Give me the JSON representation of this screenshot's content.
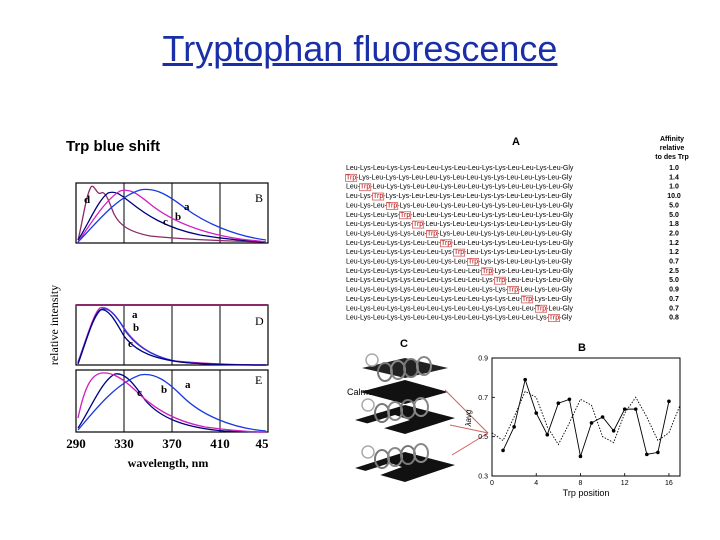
{
  "slide": {
    "title": "Tryptophan fluorescence",
    "subtitle": "Trp blue shift"
  },
  "left_figure": {
    "ylabel": "relative intensity",
    "xlabel": "wavelength, nm",
    "xticks": [
      "290",
      "330",
      "370",
      "410",
      "45"
    ],
    "panels": [
      {
        "label": "B",
        "curve_labels": [
          "d",
          "a",
          "b",
          "c"
        ]
      },
      {
        "label": "D",
        "curve_labels": [
          "a",
          "b",
          "c"
        ]
      },
      {
        "label": "E",
        "curve_labels": [
          "c",
          "b",
          "a"
        ]
      }
    ]
  },
  "table_A": {
    "panel_label": "A",
    "header_lines": [
      "Affinity",
      "relative",
      "to des Trp"
    ],
    "rows": [
      {
        "sequence": "Leu-Lys-Leu-Lys-Lys-Leu-Leu-Lys-Leu-Leu-Lys-Lys-Leu-Leu-Lys-Leu-Gly",
        "trp_pos": null,
        "affinity": "1.0"
      },
      {
        "sequence": "Trp-Lys-Leu-Lys-Lys-Leu-Leu-Lys-Leu-Leu-Lys-Lys-Leu-Leu-Lys-Leu-Gly",
        "trp_pos": 0,
        "affinity": "1.4"
      },
      {
        "sequence": "Leu-Trp-Leu-Lys-Lys-Leu-Leu-Lys-Leu-Leu-Lys-Lys-Leu-Leu-Lys-Leu-Gly",
        "trp_pos": 1,
        "affinity": "1.0"
      },
      {
        "sequence": "Leu-Lys-Trp-Lys-Lys-Leu-Leu-Lys-Leu-Leu-Lys-Lys-Leu-Leu-Lys-Leu-Gly",
        "trp_pos": 2,
        "affinity": "10.0"
      },
      {
        "sequence": "Leu-Lys-Leu-Trp-Lys-Leu-Leu-Lys-Leu-Leu-Lys-Lys-Leu-Leu-Lys-Leu-Gly",
        "trp_pos": 3,
        "affinity": "5.0"
      },
      {
        "sequence": "Leu-Lys-Leu-Lys-Trp-Leu-Leu-Lys-Leu-Leu-Lys-Lys-Leu-Leu-Lys-Leu-Gly",
        "trp_pos": 4,
        "affinity": "5.0"
      },
      {
        "sequence": "Leu-Lys-Leu-Lys-Lys-Trp-Leu-Lys-Leu-Leu-Lys-Lys-Leu-Leu-Lys-Leu-Gly",
        "trp_pos": 5,
        "affinity": "1.8"
      },
      {
        "sequence": "Leu-Lys-Leu-Lys-Lys-Leu-Trp-Lys-Leu-Leu-Lys-Lys-Leu-Leu-Lys-Leu-Gly",
        "trp_pos": 6,
        "affinity": "2.0"
      },
      {
        "sequence": "Leu-Lys-Leu-Lys-Lys-Leu-Leu-Trp-Leu-Leu-Lys-Lys-Leu-Leu-Lys-Leu-Gly",
        "trp_pos": 7,
        "affinity": "1.2"
      },
      {
        "sequence": "Leu-Lys-Leu-Lys-Lys-Leu-Leu-Lys-Trp-Leu-Lys-Lys-Leu-Leu-Lys-Leu-Gly",
        "trp_pos": 8,
        "affinity": "1.2"
      },
      {
        "sequence": "Leu-Lys-Leu-Lys-Lys-Leu-Leu-Lys-Leu-Trp-Lys-Lys-Leu-Leu-Lys-Leu-Gly",
        "trp_pos": 9,
        "affinity": "0.7"
      },
      {
        "sequence": "Leu-Lys-Leu-Lys-Lys-Leu-Leu-Lys-Leu-Leu-Trp-Lys-Leu-Leu-Lys-Leu-Gly",
        "trp_pos": 10,
        "affinity": "2.5"
      },
      {
        "sequence": "Leu-Lys-Leu-Lys-Lys-Leu-Leu-Lys-Leu-Leu-Lys-Trp-Leu-Leu-Lys-Leu-Gly",
        "trp_pos": 11,
        "affinity": "5.0"
      },
      {
        "sequence": "Leu-Lys-Leu-Lys-Lys-Leu-Leu-Lys-Leu-Leu-Lys-Lys-Trp-Leu-Lys-Leu-Gly",
        "trp_pos": 12,
        "affinity": "0.9"
      },
      {
        "sequence": "Leu-Lys-Leu-Lys-Lys-Leu-Leu-Lys-Leu-Leu-Lys-Lys-Leu-Trp-Lys-Leu-Gly",
        "trp_pos": 13,
        "affinity": "0.7"
      },
      {
        "sequence": "Leu-Lys-Leu-Lys-Lys-Leu-Leu-Lys-Leu-Leu-Lys-Lys-Leu-Leu-Trp-Leu-Gly",
        "trp_pos": 14,
        "affinity": "0.7"
      },
      {
        "sequence": "Leu-Lys-Leu-Lys-Lys-Leu-Leu-Lys-Leu-Leu-Lys-Lys-Leu-Leu-Lys-Trp-Gly",
        "trp_pos": 15,
        "affinity": "0.8"
      }
    ]
  },
  "panel_C": {
    "panel_label": "C",
    "protein_label": "Calmodulin"
  },
  "chart_data": {
    "type": "line",
    "panel_label": "B",
    "xlabel": "Trp position",
    "ylabel": "λavg",
    "xticks": [
      "0",
      "4",
      "8",
      "12",
      "16"
    ],
    "yticks": [
      "0.3",
      "0.5",
      "0.7",
      "0.9"
    ],
    "xlim": [
      0,
      17
    ],
    "ylim": [
      0.3,
      0.9
    ],
    "series": [
      {
        "style": "solid-markers",
        "x": [
          1,
          2,
          3,
          4,
          5,
          6,
          7,
          8,
          9,
          10,
          11,
          12,
          13,
          14,
          15,
          16
        ],
        "y": [
          0.43,
          0.55,
          0.79,
          0.62,
          0.51,
          0.67,
          0.69,
          0.4,
          0.57,
          0.6,
          0.53,
          0.64,
          0.64,
          0.41,
          0.42,
          0.68
        ]
      },
      {
        "style": "dotted",
        "x": [
          0,
          1,
          2,
          3,
          4,
          5,
          6,
          7,
          8,
          9,
          10,
          11,
          12,
          13,
          14,
          15,
          16,
          17
        ],
        "y": [
          0.52,
          0.48,
          0.6,
          0.73,
          0.7,
          0.55,
          0.46,
          0.57,
          0.69,
          0.66,
          0.5,
          0.47,
          0.62,
          0.7,
          0.6,
          0.48,
          0.52,
          0.66
        ]
      }
    ]
  }
}
